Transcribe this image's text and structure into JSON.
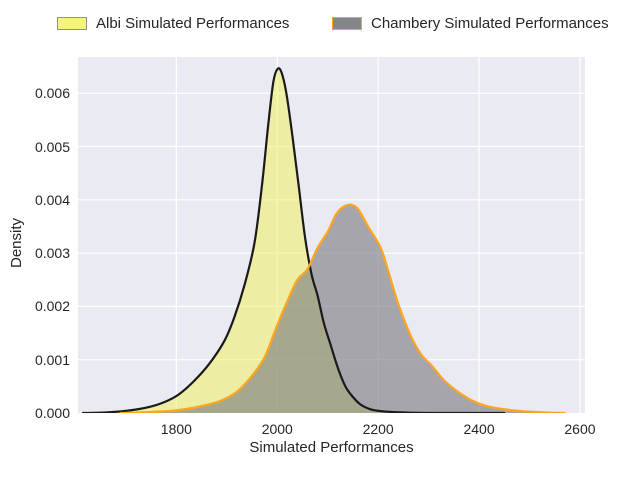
{
  "figure": {
    "background": "#ffffff",
    "panel_background": "#eaeaf2",
    "grid_color": "#ffffff",
    "text_color": "#262626"
  },
  "legend": {
    "items": [
      {
        "label": "Albi Simulated Performances",
        "swatch_fill": "#f5f57c",
        "swatch_border": "#8f8f8f"
      },
      {
        "label": "Chambery Simulated Performances",
        "swatch_fill": "#85858a",
        "swatch_border": "#ffa51e"
      }
    ]
  },
  "chart_data": {
    "type": "area",
    "subtype": "kde-density",
    "title": "",
    "xlabel": "Simulated Performances",
    "ylabel": "Density",
    "xlim": [
      1605,
      2610
    ],
    "ylim": [
      0,
      0.00668
    ],
    "x_ticks": [
      1800,
      2000,
      2200,
      2400,
      2600
    ],
    "y_ticks": [
      "0.000",
      "0.001",
      "0.002",
      "0.003",
      "0.004",
      "0.005",
      "0.006"
    ],
    "grid": true,
    "legend_position": "top outside axes",
    "series": [
      {
        "name": "Albi Simulated Performances",
        "line_color": "#1a1a1a",
        "fill_color": "rgba(240,241,85,0.5)",
        "peak": {
          "x": 2000,
          "density": 0.00645
        },
        "points": [
          [
            1615,
            0
          ],
          [
            1660,
            1e-05
          ],
          [
            1700,
            4e-05
          ],
          [
            1740,
            0.0001
          ],
          [
            1775,
            0.0002
          ],
          [
            1805,
            0.00035
          ],
          [
            1835,
            0.0006
          ],
          [
            1865,
            0.00092
          ],
          [
            1895,
            0.00135
          ],
          [
            1915,
            0.0018
          ],
          [
            1935,
            0.0024
          ],
          [
            1955,
            0.0032
          ],
          [
            1970,
            0.0043
          ],
          [
            1982,
            0.0054
          ],
          [
            1992,
            0.0062
          ],
          [
            2000,
            0.00645
          ],
          [
            2008,
            0.0064
          ],
          [
            2018,
            0.006
          ],
          [
            2030,
            0.0052
          ],
          [
            2042,
            0.0043
          ],
          [
            2055,
            0.0033
          ],
          [
            2068,
            0.0026
          ],
          [
            2080,
            0.0022
          ],
          [
            2092,
            0.0017
          ],
          [
            2105,
            0.0013
          ],
          [
            2120,
            0.00085
          ],
          [
            2135,
            0.0005
          ],
          [
            2150,
            0.0003
          ],
          [
            2165,
            0.00016
          ],
          [
            2185,
            7e-05
          ],
          [
            2210,
            3e-05
          ],
          [
            2250,
            1e-05
          ],
          [
            2320,
            0
          ],
          [
            2450,
            0
          ]
        ]
      },
      {
        "name": "Chambery Simulated Performances",
        "line_color": "#ffa51e",
        "fill_color": "rgba(123,123,127,0.62)",
        "peak": {
          "x": 2140,
          "density": 0.0039
        },
        "points": [
          [
            1690,
            0
          ],
          [
            1750,
            2e-05
          ],
          [
            1800,
            5e-05
          ],
          [
            1845,
            0.00012
          ],
          [
            1885,
            0.00022
          ],
          [
            1920,
            0.0004
          ],
          [
            1950,
            0.0007
          ],
          [
            1975,
            0.00105
          ],
          [
            2000,
            0.00165
          ],
          [
            2020,
            0.0021
          ],
          [
            2040,
            0.0025
          ],
          [
            2060,
            0.0027
          ],
          [
            2080,
            0.0031
          ],
          [
            2100,
            0.0034
          ],
          [
            2118,
            0.00375
          ],
          [
            2138,
            0.0039
          ],
          [
            2158,
            0.00385
          ],
          [
            2180,
            0.0035
          ],
          [
            2205,
            0.0031
          ],
          [
            2222,
            0.0026
          ],
          [
            2238,
            0.0021
          ],
          [
            2262,
            0.0015
          ],
          [
            2285,
            0.0011
          ],
          [
            2305,
            0.0009
          ],
          [
            2330,
            0.00062
          ],
          [
            2355,
            0.00042
          ],
          [
            2385,
            0.00024
          ],
          [
            2415,
            0.00013
          ],
          [
            2450,
            7e-05
          ],
          [
            2490,
            3e-05
          ],
          [
            2530,
            1e-05
          ],
          [
            2570,
            0
          ]
        ]
      }
    ]
  }
}
